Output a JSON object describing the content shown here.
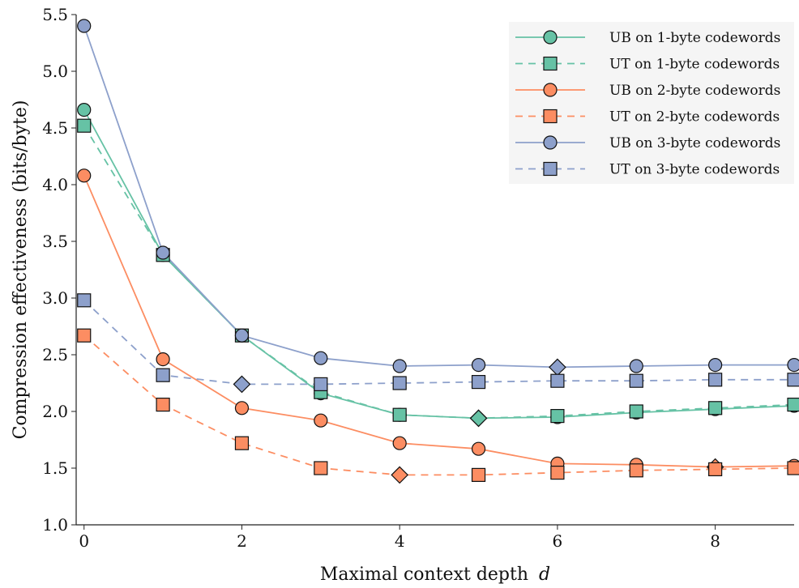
{
  "chart_data": {
    "type": "line",
    "xlabel": "Maximal context depth",
    "xlabel_var": "d",
    "ylabel": "Compression effectiveness (bits/byte)",
    "xlim": [
      -0.1,
      9.0
    ],
    "ylim": [
      1.0,
      5.5
    ],
    "xticks": [
      0,
      2,
      4,
      6,
      8
    ],
    "yticks": [
      1.0,
      1.5,
      2.0,
      2.5,
      3.0,
      3.5,
      4.0,
      4.5,
      5.0,
      5.5
    ],
    "grid": false,
    "legend_position": "top-right",
    "x": [
      0,
      1,
      2,
      3,
      4,
      5,
      6,
      7,
      8,
      9
    ],
    "series": [
      {
        "name": "UB on 1-byte codewords",
        "color": "#66c2a5",
        "dashed": false,
        "marker": "circle",
        "values": [
          4.66,
          3.38,
          2.67,
          2.16,
          1.97,
          1.94,
          1.95,
          1.99,
          2.02,
          2.05
        ],
        "best_index": 5
      },
      {
        "name": "UT on 1-byte codewords",
        "color": "#66c2a5",
        "dashed": true,
        "marker": "square",
        "values": [
          4.52,
          3.38,
          2.67,
          2.17,
          1.97,
          1.94,
          1.96,
          2.0,
          2.03,
          2.06
        ],
        "best_index": 5
      },
      {
        "name": "UB on 2-byte codewords",
        "color": "#fc8d62",
        "dashed": false,
        "marker": "circle",
        "values": [
          4.08,
          2.46,
          2.03,
          1.92,
          1.72,
          1.67,
          1.54,
          1.53,
          1.51,
          1.52
        ],
        "best_index": 8
      },
      {
        "name": "UT on 2-byte codewords",
        "color": "#fc8d62",
        "dashed": true,
        "marker": "square",
        "values": [
          2.67,
          2.06,
          1.72,
          1.5,
          1.44,
          1.44,
          1.46,
          1.48,
          1.49,
          1.5
        ],
        "best_index": 4
      },
      {
        "name": "UB on 3-byte codewords",
        "color": "#8da0cb",
        "dashed": false,
        "marker": "circle",
        "values": [
          5.4,
          3.4,
          2.67,
          2.47,
          2.4,
          2.41,
          2.39,
          2.4,
          2.41,
          2.41
        ],
        "best_index": 6
      },
      {
        "name": "UT on 3-byte codewords",
        "color": "#8da0cb",
        "dashed": true,
        "marker": "square",
        "values": [
          2.98,
          2.32,
          2.24,
          2.24,
          2.25,
          2.26,
          2.27,
          2.27,
          2.28,
          2.28
        ],
        "best_index": 2
      }
    ]
  }
}
